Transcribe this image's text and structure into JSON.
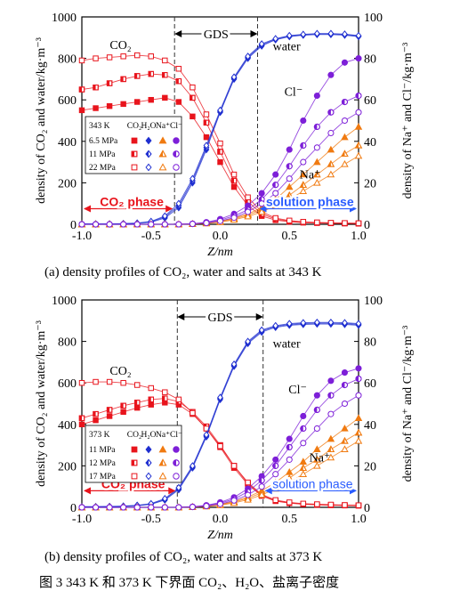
{
  "figure_caption": "图 3   343 K 和 373 K 下界面 CO₂、H₂O、盐离子密度",
  "chart_data": [
    {
      "type": "scatter",
      "subcaption": "(a)   density profiles of CO₂, water and salts at 343 K",
      "xlabel": "Z/nm",
      "ylabel_left": "density of CO₂ and water/kg·m⁻³",
      "ylabel_right": "density of Na⁺ and Cl⁻/kg·m⁻³",
      "xlim": [
        -1.0,
        1.0
      ],
      "ylim_left": [
        0,
        1000
      ],
      "ylim_right": [
        0,
        100
      ],
      "x_ticks": [
        "-1.0",
        "-0.5",
        "0.0",
        "0.5",
        "1.0"
      ],
      "y_ticks_left": [
        "0",
        "200",
        "400",
        "600",
        "800",
        "1000"
      ],
      "y_ticks_right": [
        "0",
        "20",
        "40",
        "60",
        "80",
        "100"
      ],
      "gds_bounds": [
        -0.33,
        0.27
      ],
      "annotations": {
        "gds": "GDS",
        "co2": "CO₂",
        "water": "water",
        "cl": "Cl⁻",
        "na": "Na⁺",
        "co2_phase": "CO₂ phase",
        "solution_phase": "solution phase"
      },
      "legend": {
        "title": "343 K",
        "headers": [
          "CO₂",
          "H₂O",
          "Na⁺",
          "Cl⁻"
        ],
        "rows": [
          {
            "label": "6.5 MPa",
            "fill": "full"
          },
          {
            "label": "11 MPa",
            "fill": "half"
          },
          {
            "label": "22 MPa",
            "fill": "none"
          }
        ]
      },
      "colors": {
        "co2": "#e8141c",
        "water": "#1f2fd0",
        "na": "#f07a10",
        "cl": "#7d1fd8",
        "phase_arrow_left": "#e8141c",
        "phase_arrow_right": "#2a5cff"
      },
      "x": [
        -1.0,
        -0.9,
        -0.8,
        -0.7,
        -0.6,
        -0.5,
        -0.4,
        -0.3,
        -0.2,
        -0.1,
        0.0,
        0.1,
        0.2,
        0.3,
        0.4,
        0.5,
        0.6,
        0.7,
        0.8,
        0.9,
        1.0
      ],
      "series": [
        {
          "name": "CO₂",
          "pressure": "6.5 MPa",
          "species": "co2",
          "marker": "square",
          "fill": "full",
          "axis": "left",
          "values": [
            550,
            560,
            570,
            580,
            590,
            600,
            610,
            590,
            520,
            420,
            300,
            180,
            90,
            40,
            20,
            12,
            8,
            6,
            5,
            4,
            3
          ]
        },
        {
          "name": "CO₂",
          "pressure": "11 MPa",
          "species": "co2",
          "marker": "square",
          "fill": "half",
          "axis": "left",
          "values": [
            650,
            660,
            680,
            700,
            715,
            725,
            720,
            690,
            610,
            490,
            350,
            210,
            110,
            50,
            25,
            15,
            10,
            8,
            6,
            5,
            4
          ]
        },
        {
          "name": "CO₂",
          "pressure": "22 MPa",
          "species": "co2",
          "marker": "square",
          "fill": "none",
          "axis": "left",
          "values": [
            790,
            800,
            805,
            810,
            815,
            810,
            790,
            750,
            660,
            530,
            390,
            240,
            130,
            60,
            30,
            18,
            12,
            9,
            7,
            6,
            5
          ]
        },
        {
          "name": "H₂O",
          "pressure": "6.5 MPa",
          "species": "water",
          "marker": "diamond",
          "fill": "full",
          "axis": "left",
          "values": [
            2,
            2,
            2,
            3,
            5,
            10,
            30,
            80,
            200,
            360,
            540,
            700,
            800,
            860,
            890,
            905,
            912,
            915,
            915,
            912,
            905
          ]
        },
        {
          "name": "H₂O",
          "pressure": "11 MPa",
          "species": "water",
          "marker": "diamond",
          "fill": "half",
          "axis": "left",
          "values": [
            2,
            2,
            2,
            3,
            5,
            12,
            35,
            90,
            210,
            370,
            545,
            705,
            805,
            865,
            892,
            908,
            914,
            918,
            918,
            915,
            908
          ]
        },
        {
          "name": "H₂O",
          "pressure": "22 MPa",
          "species": "water",
          "marker": "diamond",
          "fill": "none",
          "axis": "left",
          "values": [
            2,
            2,
            2,
            3,
            6,
            14,
            40,
            100,
            220,
            380,
            550,
            710,
            810,
            870,
            895,
            910,
            916,
            920,
            920,
            917,
            910
          ]
        },
        {
          "name": "Na⁺",
          "pressure": "6.5 MPa",
          "species": "na",
          "marker": "triangle",
          "fill": "full",
          "axis": "right",
          "values": [
            0,
            0,
            0,
            0,
            0,
            0,
            0,
            0,
            0.2,
            0.6,
            1.5,
            3,
            5,
            8,
            12,
            18,
            24,
            30,
            36,
            42,
            47
          ]
        },
        {
          "name": "Na⁺",
          "pressure": "11 MPa",
          "species": "na",
          "marker": "triangle",
          "fill": "half",
          "axis": "right",
          "values": [
            0,
            0,
            0,
            0,
            0,
            0,
            0,
            0,
            0.2,
            0.5,
            1.3,
            2.6,
            4.5,
            7,
            10,
            14,
            19,
            24,
            29,
            34,
            38
          ]
        },
        {
          "name": "Na⁺",
          "pressure": "22 MPa",
          "species": "na",
          "marker": "triangle",
          "fill": "none",
          "axis": "right",
          "values": [
            0,
            0,
            0,
            0,
            0,
            0,
            0,
            0,
            0.1,
            0.4,
            1.0,
            2.2,
            3.8,
            6,
            9,
            12,
            16,
            20,
            24,
            29,
            33
          ]
        },
        {
          "name": "Cl⁻",
          "pressure": "6.5 MPa",
          "species": "cl",
          "marker": "circle",
          "fill": "full",
          "axis": "right",
          "values": [
            0,
            0,
            0,
            0,
            0,
            0,
            0,
            0,
            0.3,
            1,
            2.5,
            5,
            9,
            15,
            24,
            36,
            50,
            62,
            72,
            78,
            80
          ]
        },
        {
          "name": "Cl⁻",
          "pressure": "11 MPa",
          "species": "cl",
          "marker": "circle",
          "fill": "half",
          "axis": "right",
          "values": [
            0,
            0,
            0,
            0,
            0,
            0,
            0,
            0,
            0.2,
            0.8,
            2,
            4,
            7,
            12,
            19,
            28,
            38,
            47,
            54,
            59,
            62
          ]
        },
        {
          "name": "Cl⁻",
          "pressure": "22 MPa",
          "species": "cl",
          "marker": "circle",
          "fill": "none",
          "axis": "right",
          "values": [
            0,
            0,
            0,
            0,
            0,
            0,
            0,
            0,
            0.2,
            0.6,
            1.6,
            3.2,
            6,
            10,
            15,
            22,
            30,
            37,
            44,
            50,
            54
          ]
        }
      ]
    },
    {
      "type": "scatter",
      "subcaption": "(b)   density profiles of CO₂, water and salts at 373 K",
      "xlabel": "Z/nm",
      "ylabel_left": "density of CO₂ and water/kg·m⁻³",
      "ylabel_right": "density of Na⁺ and Cl⁻/kg·m⁻³",
      "xlim": [
        -1.0,
        1.0
      ],
      "ylim_left": [
        0,
        1000
      ],
      "ylim_right": [
        0,
        100
      ],
      "x_ticks": [
        "-1.0",
        "-0.5",
        "0.0",
        "0.5",
        "1.0"
      ],
      "y_ticks_left": [
        "0",
        "200",
        "400",
        "600",
        "800",
        "1000"
      ],
      "y_ticks_right": [
        "0",
        "20",
        "40",
        "60",
        "80",
        "100"
      ],
      "gds_bounds": [
        -0.31,
        0.31
      ],
      "annotations": {
        "gds": "GDS",
        "co2": "CO₂",
        "water": "water",
        "cl": "Cl⁻",
        "na": "Na⁺",
        "co2_phase": "CO₂ phase",
        "solution_phase": "solution phase"
      },
      "legend": {
        "title": "373 K",
        "headers": [
          "CO₂",
          "H₂O",
          "Na⁺",
          "Cl⁻"
        ],
        "rows": [
          {
            "label": "11 MPa",
            "fill": "full"
          },
          {
            "label": "12 MPa",
            "fill": "half"
          },
          {
            "label": "17 MPa",
            "fill": "none"
          }
        ]
      },
      "colors": {
        "co2": "#e8141c",
        "water": "#1f2fd0",
        "na": "#f07a10",
        "cl": "#7d1fd8",
        "phase_arrow_left": "#e8141c",
        "phase_arrow_right": "#2a5cff"
      },
      "x": [
        -1.0,
        -0.9,
        -0.8,
        -0.7,
        -0.6,
        -0.5,
        -0.4,
        -0.3,
        -0.2,
        -0.1,
        0.0,
        0.1,
        0.2,
        0.3,
        0.4,
        0.5,
        0.6,
        0.7,
        0.8,
        0.9,
        1.0
      ],
      "series": [
        {
          "name": "CO₂",
          "pressure": "11 MPa",
          "species": "co2",
          "marker": "square",
          "fill": "full",
          "axis": "left",
          "values": [
            400,
            420,
            440,
            460,
            480,
            495,
            505,
            495,
            450,
            380,
            290,
            190,
            110,
            55,
            30,
            20,
            15,
            12,
            10,
            9,
            8
          ]
        },
        {
          "name": "CO₂",
          "pressure": "12 MPa",
          "species": "co2",
          "marker": "square",
          "fill": "half",
          "axis": "left",
          "values": [
            430,
            450,
            470,
            490,
            505,
            520,
            525,
            510,
            460,
            390,
            300,
            200,
            115,
            58,
            32,
            22,
            16,
            13,
            11,
            10,
            9
          ]
        },
        {
          "name": "CO₂",
          "pressure": "17 MPa",
          "species": "co2",
          "marker": "square",
          "fill": "none",
          "axis": "left",
          "values": [
            600,
            605,
            605,
            600,
            590,
            575,
            555,
            520,
            455,
            380,
            295,
            200,
            120,
            62,
            35,
            24,
            18,
            15,
            13,
            11,
            10
          ]
        },
        {
          "name": "H₂O",
          "pressure": "11 MPa",
          "species": "water",
          "marker": "diamond",
          "fill": "full",
          "axis": "left",
          "values": [
            3,
            3,
            4,
            5,
            8,
            15,
            35,
            85,
            190,
            340,
            520,
            680,
            790,
            845,
            868,
            878,
            882,
            884,
            884,
            882,
            878
          ]
        },
        {
          "name": "H₂O",
          "pressure": "12 MPa",
          "species": "water",
          "marker": "diamond",
          "fill": "half",
          "axis": "left",
          "values": [
            3,
            3,
            4,
            5,
            9,
            16,
            38,
            90,
            195,
            345,
            525,
            685,
            795,
            850,
            872,
            882,
            886,
            888,
            888,
            886,
            882
          ]
        },
        {
          "name": "H₂O",
          "pressure": "17 MPa",
          "species": "water",
          "marker": "diamond",
          "fill": "none",
          "axis": "left",
          "values": [
            3,
            3,
            4,
            6,
            10,
            18,
            42,
            95,
            200,
            350,
            530,
            690,
            800,
            855,
            876,
            886,
            890,
            892,
            892,
            890,
            886
          ]
        },
        {
          "name": "Na⁺",
          "pressure": "11 MPa",
          "species": "na",
          "marker": "triangle",
          "fill": "full",
          "axis": "right",
          "values": [
            0,
            0,
            0,
            0,
            0,
            0,
            0,
            0,
            0.2,
            0.6,
            1.4,
            2.8,
            5,
            8,
            12,
            17,
            22,
            28,
            33,
            38,
            43
          ]
        },
        {
          "name": "Na⁺",
          "pressure": "12 MPa",
          "species": "na",
          "marker": "triangle",
          "fill": "half",
          "axis": "right",
          "values": [
            0,
            0,
            0,
            0,
            0,
            0,
            0,
            0,
            0.2,
            0.5,
            1.2,
            2.5,
            4.4,
            7,
            10,
            14,
            19,
            23,
            28,
            32,
            36
          ]
        },
        {
          "name": "Na⁺",
          "pressure": "17 MPa",
          "species": "na",
          "marker": "triangle",
          "fill": "none",
          "axis": "right",
          "values": [
            0,
            0,
            0,
            0,
            0,
            0,
            0,
            0,
            0.1,
            0.4,
            1.0,
            2.1,
            3.7,
            6,
            9,
            12,
            16,
            20,
            24,
            28,
            32
          ]
        },
        {
          "name": "Cl⁻",
          "pressure": "11 MPa",
          "species": "cl",
          "marker": "circle",
          "fill": "full",
          "axis": "right",
          "values": [
            0,
            0,
            0,
            0,
            0,
            0,
            0,
            0,
            0.3,
            1,
            2.4,
            4.8,
            9,
            15,
            23,
            33,
            44,
            54,
            61,
            65,
            67
          ]
        },
        {
          "name": "Cl⁻",
          "pressure": "12 MPa",
          "species": "cl",
          "marker": "circle",
          "fill": "half",
          "axis": "right",
          "values": [
            0,
            0,
            0,
            0,
            0,
            0,
            0,
            0,
            0.2,
            0.8,
            2,
            4,
            7.5,
            13,
            20,
            29,
            38,
            47,
            54,
            59,
            62
          ]
        },
        {
          "name": "Cl⁻",
          "pressure": "17 MPa",
          "species": "cl",
          "marker": "circle",
          "fill": "none",
          "axis": "right",
          "values": [
            0,
            0,
            0,
            0,
            0,
            0,
            0,
            0,
            0.2,
            0.6,
            1.6,
            3.3,
            6,
            10,
            16,
            23,
            31,
            38,
            45,
            50,
            54
          ]
        }
      ]
    }
  ]
}
